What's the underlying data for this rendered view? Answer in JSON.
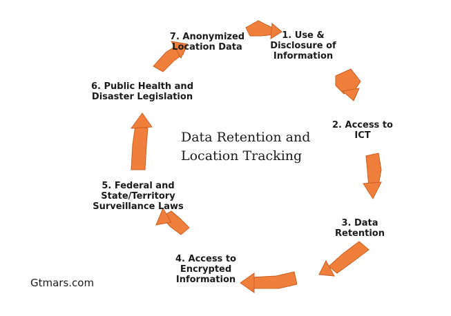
{
  "center_title": "Data Retention and\nLocation Tracking",
  "steps": [
    {
      "label": "1. Use &\nDisclosure of\nInformation"
    },
    {
      "label": "2. Access to\nICT"
    },
    {
      "label": "3. Data\nRetention"
    },
    {
      "label": "4. Access to\nEncrypted\nInformation"
    },
    {
      "label": "5. Federal and\nState/Territory\nSurveillance Laws"
    },
    {
      "label": "6. Public Health and\nDisaster Legislation"
    },
    {
      "label": "7. Anonymized\nLocation Data"
    }
  ],
  "watermark": "Gtmars.com",
  "colors": {
    "arrow": "#ef7f3a",
    "arrow_dark": "#c95f22",
    "text": "#1a1a1a"
  }
}
